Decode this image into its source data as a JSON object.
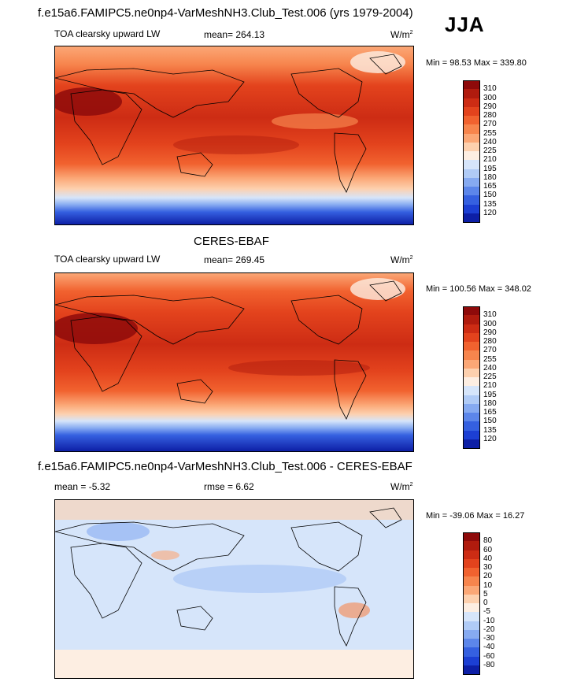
{
  "season": "JJA",
  "panels": [
    {
      "title": "f.e15a6.FAMIPC5.ne0np4-VarMeshNH3.Club_Test.006 (yrs 1979-2004)",
      "left_label": "TOA clearsky upward LW",
      "center_label": "mean= 264.13",
      "units": "W/m",
      "units_sup": "2",
      "minmax": "Min =  98.53 Max = 339.80",
      "colorbar": {
        "ticks": [
          "310",
          "300",
          "290",
          "280",
          "270",
          "255",
          "240",
          "225",
          "210",
          "195",
          "180",
          "165",
          "150",
          "135",
          "120"
        ],
        "colors": [
          "#8e0a0a",
          "#b01b0e",
          "#cd2c14",
          "#e3431d",
          "#f1622f",
          "#f7854d",
          "#fba776",
          "#fdd0ae",
          "#fdeee2",
          "#d6e5fa",
          "#b0cbf6",
          "#86aaf1",
          "#5c86ea",
          "#3560e0",
          "#1c3fd3",
          "#0d1fa6"
        ]
      }
    },
    {
      "title": "CERES-EBAF",
      "left_label": "TOA clearsky upward LW",
      "center_label": "mean= 269.45",
      "units": "W/m",
      "units_sup": "2",
      "minmax": "Min = 100.56 Max = 348.02",
      "colorbar": {
        "ticks": [
          "310",
          "300",
          "290",
          "280",
          "270",
          "255",
          "240",
          "225",
          "210",
          "195",
          "180",
          "165",
          "150",
          "135",
          "120"
        ],
        "colors": [
          "#8e0a0a",
          "#b01b0e",
          "#cd2c14",
          "#e3431d",
          "#f1622f",
          "#f7854d",
          "#fba776",
          "#fdd0ae",
          "#fdeee2",
          "#d6e5fa",
          "#b0cbf6",
          "#86aaf1",
          "#5c86ea",
          "#3560e0",
          "#1c3fd3",
          "#0d1fa6"
        ]
      }
    },
    {
      "title": "f.e15a6.FAMIPC5.ne0np4-VarMeshNH3.Club_Test.006 - CERES-EBAF",
      "left_label": "mean =  -5.32",
      "center_label": "rmse =   6.62",
      "units": "W/m",
      "units_sup": "2",
      "minmax": "Min = -39.06 Max =  16.27",
      "colorbar": {
        "ticks": [
          "80",
          "60",
          "40",
          "30",
          "20",
          "10",
          "5",
          "0",
          "-5",
          "-10",
          "-20",
          "-30",
          "-40",
          "-60",
          "-80"
        ],
        "colors": [
          "#8e0a0a",
          "#b01b0e",
          "#cd2c14",
          "#e3431d",
          "#f1622f",
          "#f7854d",
          "#fba776",
          "#fdd0ae",
          "#fdeee2",
          "#d6e5fa",
          "#b0cbf6",
          "#86aaf1",
          "#5c86ea",
          "#3560e0",
          "#1c3fd3",
          "#0d1fa6"
        ]
      }
    }
  ]
}
